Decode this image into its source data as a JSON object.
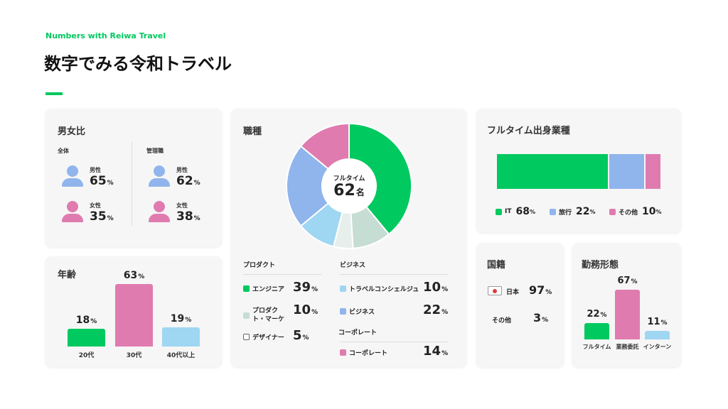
{
  "header": {
    "subtitle": "Numbers with Reiwa Travel",
    "title": "数字でみる令和トラベル"
  },
  "colors": {
    "green": "#00c95f",
    "pink": "#e07bb0",
    "blue": "#8fb5ec",
    "lightblue": "#9fd6f2",
    "mint": "#c6ddd3",
    "pale": "#e6efeb",
    "accent": "#00c95f"
  },
  "gender": {
    "title": "男女比",
    "groups": [
      {
        "label": "全体",
        "male_label": "男性",
        "male": "65",
        "female_label": "女性",
        "female": "35"
      },
      {
        "label": "管理職",
        "male_label": "男性",
        "male": "62",
        "female_label": "女性",
        "female": "38"
      }
    ],
    "unit": "%"
  },
  "age": {
    "title": "年齢",
    "unit": "%"
  },
  "jobs": {
    "title": "職種",
    "center_label": "フルタイム",
    "center_value": "62",
    "center_unit": "名",
    "groups": [
      {
        "label": "プロダクト"
      },
      {
        "label": "ビジネス"
      },
      {
        "label": "コーポレート"
      }
    ]
  },
  "origin": {
    "title": "フルタイム出身業種",
    "unit": "%"
  },
  "nationality": {
    "title": "国籍",
    "items": [
      {
        "label": "日本",
        "value": "97"
      },
      {
        "label": "その他",
        "value": "3"
      }
    ],
    "unit": "%"
  },
  "work": {
    "title": "勤務形態",
    "unit": "%"
  },
  "chart_data": [
    {
      "type": "bar",
      "title": "年齢",
      "categories": [
        "20代",
        "30代",
        "40代以上"
      ],
      "values": [
        18,
        63,
        19
      ],
      "ylim": [
        0,
        63
      ]
    },
    {
      "type": "pie",
      "title": "職種",
      "categories": [
        "エンジニア",
        "プロダクト・マーケ",
        "デザイナー",
        "トラベルコンシェルジュ",
        "ビジネス",
        "コーポレート"
      ],
      "values": [
        39,
        10,
        5,
        10,
        22,
        14
      ],
      "groups": [
        "プロダクト",
        "プロダクト",
        "プロダクト",
        "ビジネス",
        "ビジネス",
        "コーポレート"
      ]
    },
    {
      "type": "bar",
      "title": "フルタイム出身業種",
      "stacked": true,
      "categories": [
        "IT",
        "旅行",
        "その他"
      ],
      "values": [
        68,
        22,
        10
      ]
    },
    {
      "type": "bar",
      "title": "勤務形態",
      "categories": [
        "フルタイム",
        "業務委託",
        "インターン"
      ],
      "values": [
        22,
        67,
        11
      ],
      "ylim": [
        0,
        67
      ]
    }
  ]
}
